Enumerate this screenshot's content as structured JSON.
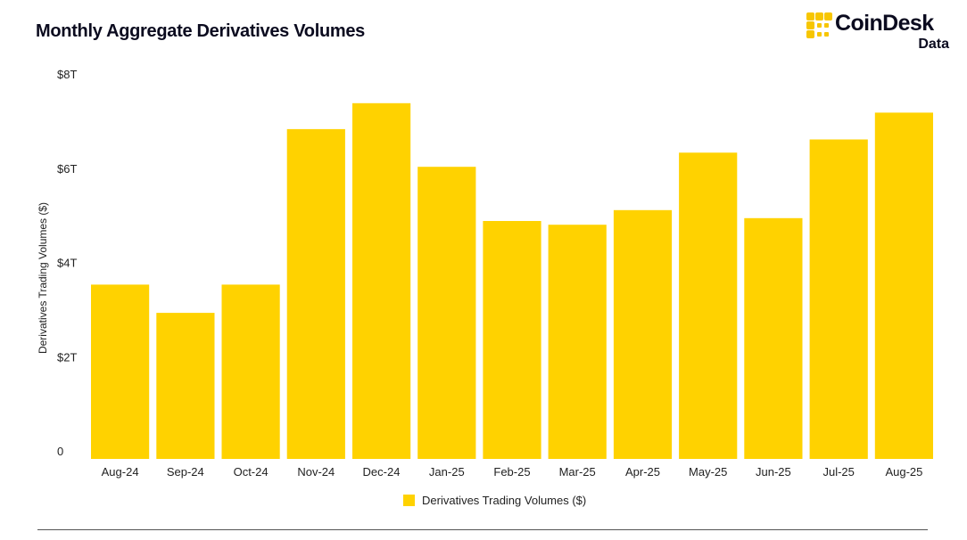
{
  "title": "Monthly Aggregate Derivatives Volumes",
  "brand": {
    "name": "CoinDesk",
    "sub": "Data",
    "logo_icon": "coindesk-logo-icon",
    "logo_color": "#F7C600"
  },
  "colors": {
    "bar": "#FFD200",
    "text": "#0B0B1F",
    "axis_text": "#222222"
  },
  "chart_data": {
    "type": "bar",
    "title": "Monthly Aggregate Derivatives Volumes",
    "xlabel": "",
    "ylabel": "Derivatives Trading Volumes ($)",
    "ylim": [
      0,
      8
    ],
    "y_unit": "trillion USD",
    "yticks": [
      0,
      2,
      4,
      6,
      8
    ],
    "ytick_labels": [
      "0",
      "$2T",
      "$4T",
      "$6T",
      "$8T"
    ],
    "grid": false,
    "legend_position": "bottom-center",
    "categories": [
      "Aug-24",
      "Sep-24",
      "Oct-24",
      "Nov-24",
      "Dec-24",
      "Jan-25",
      "Feb-25",
      "Mar-25",
      "Apr-25",
      "May-25",
      "Jun-25",
      "Jul-25",
      "Aug-25"
    ],
    "series": [
      {
        "name": "Derivatives Trading Volumes ($)",
        "color": "#FFD200",
        "values": [
          3.7,
          3.1,
          3.7,
          7.0,
          7.55,
          6.2,
          5.05,
          4.97,
          5.28,
          6.5,
          5.11,
          6.78,
          7.35
        ]
      }
    ]
  }
}
